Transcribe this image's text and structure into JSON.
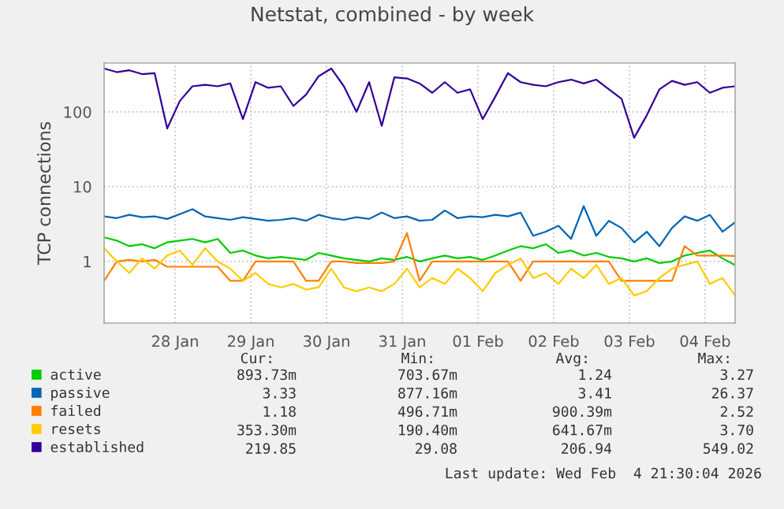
{
  "chart_data": {
    "type": "line",
    "title": "Netstat, combined - by week",
    "ylabel": "TCP connections",
    "x": [
      "2026-01-27T13:30",
      "2026-01-27T17:30",
      "2026-01-27T21:30",
      "2026-01-28T01:30",
      "2026-01-28T05:30",
      "2026-01-28T09:30",
      "2026-01-28T13:30",
      "2026-01-28T17:30",
      "2026-01-28T21:30",
      "2026-01-29T01:30",
      "2026-01-29T05:30",
      "2026-01-29T09:30",
      "2026-01-29T13:30",
      "2026-01-29T17:30",
      "2026-01-29T21:30",
      "2026-01-30T01:30",
      "2026-01-30T05:30",
      "2026-01-30T09:30",
      "2026-01-30T13:30",
      "2026-01-30T17:30",
      "2026-01-30T21:30",
      "2026-01-31T01:30",
      "2026-01-31T05:30",
      "2026-01-31T09:30",
      "2026-01-31T13:30",
      "2026-01-31T17:30",
      "2026-01-31T21:30",
      "2026-02-01T01:30",
      "2026-02-01T05:30",
      "2026-02-01T09:30",
      "2026-02-01T13:30",
      "2026-02-01T17:30",
      "2026-02-01T21:30",
      "2026-02-02T01:30",
      "2026-02-02T05:30",
      "2026-02-02T09:30",
      "2026-02-02T13:30",
      "2026-02-02T17:30",
      "2026-02-02T21:30",
      "2026-02-03T01:30",
      "2026-02-03T05:30",
      "2026-02-03T09:30",
      "2026-02-03T13:30",
      "2026-02-03T17:30",
      "2026-02-03T21:30",
      "2026-02-04T01:30",
      "2026-02-04T05:30",
      "2026-02-04T09:30",
      "2026-02-04T13:30",
      "2026-02-04T17:30",
      "2026-02-04T21:30"
    ],
    "series": [
      {
        "name": "active",
        "color": "#00cc00",
        "values": [
          2.1,
          1.9,
          1.6,
          1.7,
          1.5,
          1.8,
          1.9,
          2.0,
          1.8,
          2.0,
          1.3,
          1.4,
          1.2,
          1.1,
          1.15,
          1.1,
          1.05,
          1.3,
          1.2,
          1.1,
          1.05,
          1.0,
          1.1,
          1.05,
          1.15,
          1.0,
          1.1,
          1.2,
          1.1,
          1.15,
          1.05,
          1.2,
          1.4,
          1.6,
          1.5,
          1.7,
          1.3,
          1.4,
          1.2,
          1.3,
          1.15,
          1.1,
          1.0,
          1.1,
          0.95,
          1.0,
          1.2,
          1.3,
          1.4,
          1.1,
          0.89
        ]
      },
      {
        "name": "passive",
        "color": "#0066b3",
        "values": [
          4.0,
          3.8,
          4.2,
          3.9,
          4.0,
          3.7,
          4.3,
          5.0,
          4.0,
          3.8,
          3.6,
          3.9,
          3.7,
          3.5,
          3.6,
          3.8,
          3.5,
          4.2,
          3.8,
          3.6,
          3.9,
          3.7,
          4.5,
          3.8,
          4.0,
          3.5,
          3.6,
          4.8,
          3.8,
          4.0,
          3.9,
          4.2,
          4.0,
          4.5,
          2.2,
          2.5,
          3.0,
          2.0,
          5.5,
          2.2,
          3.5,
          2.8,
          1.8,
          2.5,
          1.6,
          2.8,
          4.0,
          3.5,
          4.2,
          2.5,
          3.33
        ]
      },
      {
        "name": "failed",
        "color": "#ff8000",
        "values": [
          0.55,
          1.0,
          1.05,
          1.0,
          1.05,
          0.85,
          0.85,
          0.85,
          0.85,
          0.85,
          0.55,
          0.55,
          1.0,
          1.0,
          1.0,
          1.0,
          0.55,
          0.55,
          1.0,
          1.0,
          0.95,
          0.95,
          0.95,
          1.0,
          2.4,
          0.55,
          1.0,
          1.0,
          1.0,
          1.0,
          1.0,
          1.0,
          1.0,
          0.55,
          1.0,
          1.0,
          1.0,
          1.0,
          1.0,
          1.0,
          1.0,
          0.55,
          0.55,
          0.55,
          0.55,
          0.55,
          1.6,
          1.2,
          1.2,
          1.2,
          1.18
        ]
      },
      {
        "name": "resets",
        "color": "#ffcc00",
        "values": [
          1.5,
          1.0,
          0.7,
          1.1,
          0.8,
          1.2,
          1.4,
          0.9,
          1.5,
          1.0,
          0.8,
          0.55,
          0.7,
          0.5,
          0.45,
          0.5,
          0.42,
          0.45,
          0.8,
          0.45,
          0.4,
          0.45,
          0.4,
          0.5,
          0.8,
          0.45,
          0.6,
          0.5,
          0.8,
          0.6,
          0.4,
          0.7,
          0.9,
          1.1,
          0.6,
          0.7,
          0.5,
          0.8,
          0.6,
          0.9,
          0.5,
          0.6,
          0.35,
          0.4,
          0.6,
          0.8,
          0.9,
          1.0,
          0.5,
          0.6,
          0.35
        ]
      },
      {
        "name": "established",
        "color": "#330099",
        "values": [
          380,
          340,
          360,
          320,
          330,
          60,
          140,
          220,
          230,
          220,
          240,
          80,
          250,
          210,
          220,
          120,
          170,
          300,
          380,
          220,
          100,
          250,
          65,
          290,
          280,
          240,
          180,
          250,
          180,
          200,
          80,
          160,
          330,
          250,
          230,
          220,
          250,
          270,
          240,
          270,
          200,
          150,
          45,
          90,
          200,
          260,
          230,
          250,
          180,
          210,
          220
        ]
      }
    ],
    "log": "y",
    "ylim": [
      0.15,
      450
    ],
    "yticks": [
      1,
      10,
      100
    ],
    "xlim": [
      "2026-01-27T13:30",
      "2026-02-04T21:30"
    ],
    "xticks": [
      {
        "value": "2026-01-28T12:00",
        "label": "28 Jan"
      },
      {
        "value": "2026-01-29T12:00",
        "label": "29 Jan"
      },
      {
        "value": "2026-01-30T12:00",
        "label": "30 Jan"
      },
      {
        "value": "2026-01-31T12:00",
        "label": "31 Jan"
      },
      {
        "value": "2026-02-01T12:00",
        "label": "01 Feb"
      },
      {
        "value": "2026-02-02T12:00",
        "label": "02 Feb"
      },
      {
        "value": "2026-02-03T12:00",
        "label": "03 Feb"
      },
      {
        "value": "2026-02-04T12:00",
        "label": "04 Feb"
      }
    ],
    "grid": true,
    "legend": "bottom",
    "line_style": "solid",
    "marker": "none",
    "annotations": [
      "Cur:",
      "Min:",
      "Avg:",
      "Max:",
      "893.73m",
      "703.67m",
      "1.24",
      "3.27",
      "3.33",
      "877.16m",
      "3.41",
      "26.37",
      "1.18",
      "496.71m",
      "900.39m",
      "2.52",
      "353.30m",
      "190.40m",
      "641.67m",
      "3.70",
      "219.85",
      "29.08",
      "206.94",
      "549.02",
      "Last update: Wed Feb  4 21:30:04 2026"
    ]
  }
}
